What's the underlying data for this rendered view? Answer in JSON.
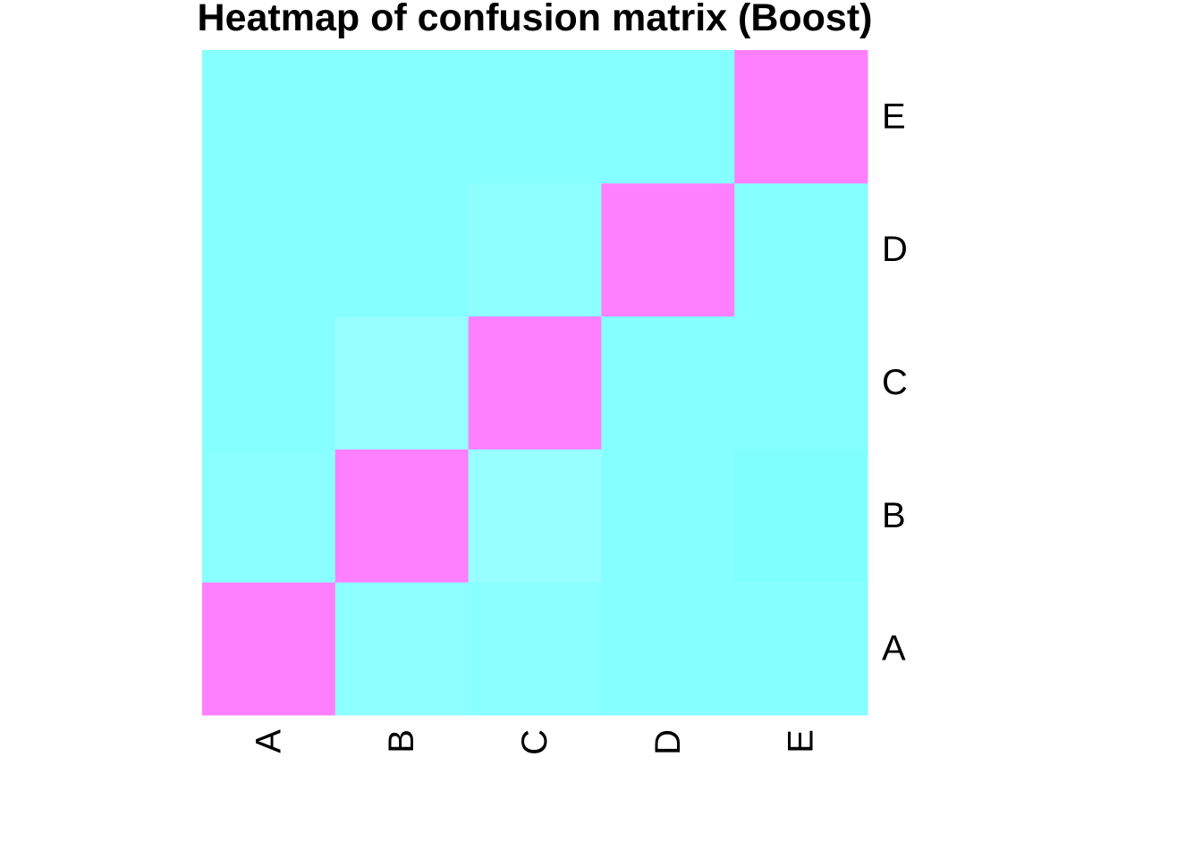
{
  "chart_data": {
    "type": "heatmap",
    "title": "Heatmap of confusion matrix (Boost)",
    "x_categories": [
      "A",
      "B",
      "C",
      "D",
      "E"
    ],
    "y_categories": [
      "A",
      "B",
      "C",
      "D",
      "E"
    ],
    "y_order": "bottom-to-top",
    "values": [
      [
        1.0,
        0.03,
        0.02,
        0.01,
        0.01
      ],
      [
        0.02,
        1.0,
        0.05,
        0.01,
        0.0
      ],
      [
        0.01,
        0.05,
        1.0,
        0.01,
        0.01
      ],
      [
        0.01,
        0.01,
        0.03,
        1.0,
        0.01
      ],
      [
        0.01,
        0.01,
        0.01,
        0.01,
        1.0
      ]
    ],
    "colors": {
      "low": "#80ffff",
      "mid": "#9bffff",
      "high": "#ff80ff"
    },
    "legend": "none",
    "grid": false
  }
}
